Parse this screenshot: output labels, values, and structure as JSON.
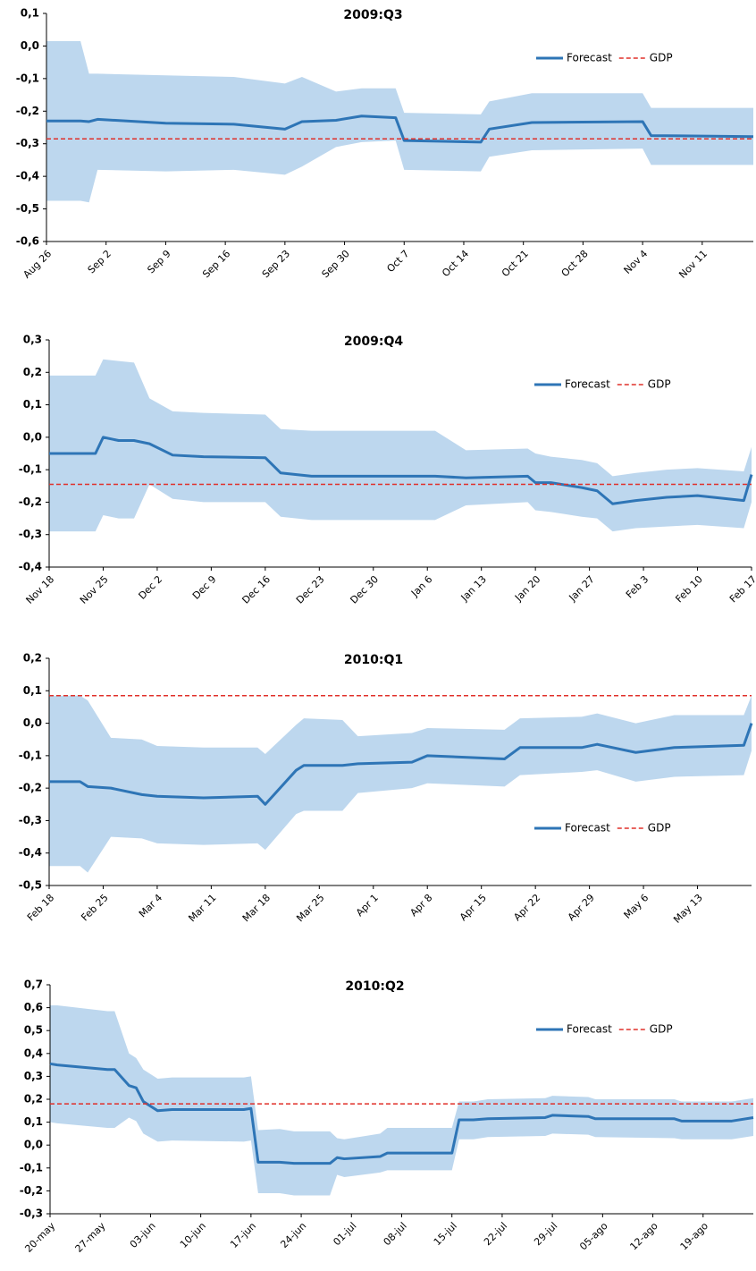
{
  "chart_data": [
    {
      "type": "line",
      "title": "2009:Q3",
      "legend": "upper right",
      "xlim": [
        "Aug 26",
        "Nov 17"
      ],
      "xticks": [
        "Aug 26",
        "Sep 2",
        "Sep 9",
        "Sep 16",
        "Sep 23",
        "Sep 30",
        "Oct 7",
        "Oct 14",
        "Oct 21",
        "Oct 28",
        "Nov 4",
        "Nov 11"
      ],
      "ylim": [
        -0.6,
        0.1
      ],
      "yticks": [
        {
          "value": 0.1,
          "label": "0,1"
        },
        {
          "value": 0,
          "label": "0,0"
        },
        {
          "value": -0.1,
          "label": "-0,1"
        },
        {
          "value": -0.2,
          "label": "-0,2"
        },
        {
          "value": -0.3,
          "label": "-0,3"
        },
        {
          "value": -0.4,
          "label": "-0,4"
        },
        {
          "value": -0.5,
          "label": "-0,5"
        },
        {
          "value": -0.6,
          "label": "-0,6"
        }
      ],
      "x": [
        "Aug 26",
        "Aug 30",
        "Aug 31",
        "Sep 1",
        "Sep 9",
        "Sep 17",
        "Sep 23",
        "Sep 25",
        "Sep 29",
        "Oct 2",
        "Oct 6",
        "Oct 7",
        "Oct 16",
        "Oct 17",
        "Oct 22",
        "Nov 4",
        "Nov 5",
        "Nov 17"
      ],
      "band": {
        "color": "#bdd7ee",
        "upper": [
          0.015,
          0.015,
          -0.085,
          -0.085,
          -0.09,
          -0.095,
          -0.115,
          -0.095,
          -0.14,
          -0.13,
          -0.13,
          -0.205,
          -0.21,
          -0.17,
          -0.145,
          -0.145,
          -0.19,
          -0.19
        ],
        "lower": [
          -0.475,
          -0.475,
          -0.48,
          -0.38,
          -0.385,
          -0.38,
          -0.395,
          -0.37,
          -0.31,
          -0.295,
          -0.29,
          -0.38,
          -0.385,
          -0.34,
          -0.32,
          -0.315,
          -0.365,
          -0.365
        ]
      },
      "series": [
        {
          "name": "Forecast",
          "color": "#2e75b6",
          "values": [
            -0.23,
            -0.23,
            -0.232,
            -0.225,
            -0.237,
            -0.24,
            -0.255,
            -0.232,
            -0.228,
            -0.215,
            -0.22,
            -0.29,
            -0.295,
            -0.255,
            -0.235,
            -0.232,
            -0.275,
            -0.278
          ]
        },
        {
          "name": "GDP",
          "color": "#e0302a",
          "dashed": true,
          "value": -0.285
        }
      ]
    },
    {
      "type": "line",
      "title": "2009:Q4",
      "legend": "upper right",
      "xlim": [
        "Nov 18",
        "Feb 17"
      ],
      "xticks": [
        "Nov 18",
        "Nov 25",
        "Dec 2",
        "Dec 9",
        "Dec 16",
        "Dec 23",
        "Dec 30",
        "Jan 6",
        "Jan 13",
        "Jan 20",
        "Jan 27",
        "Feb 3",
        "Feb 10",
        "Feb 17"
      ],
      "ylim": [
        -0.4,
        0.3
      ],
      "yticks": [
        {
          "value": 0.3,
          "label": "0,3"
        },
        {
          "value": 0.2,
          "label": "0,2"
        },
        {
          "value": 0.1,
          "label": "0,1"
        },
        {
          "value": 0,
          "label": "0,0"
        },
        {
          "value": -0.1,
          "label": "-0,1"
        },
        {
          "value": -0.2,
          "label": "-0,2"
        },
        {
          "value": -0.3,
          "label": "-0,3"
        },
        {
          "value": -0.4,
          "label": "-0,4"
        }
      ],
      "x": [
        "Nov 18",
        "Nov 24",
        "Nov 25",
        "Nov 27",
        "Nov 29",
        "Dec 1",
        "Dec 4",
        "Dec 8",
        "Dec 16",
        "Dec 18",
        "Dec 22",
        "Jan 7",
        "Jan 11",
        "Jan 19",
        "Jan 20",
        "Jan 22",
        "Jan 26",
        "Jan 28",
        "Jan 30",
        "Feb 2",
        "Feb 6",
        "Feb 10",
        "Feb 16",
        "Feb 17"
      ],
      "band": {
        "color": "#bdd7ee",
        "upper": [
          0.19,
          0.19,
          0.24,
          0.235,
          0.23,
          0.12,
          0.08,
          0.075,
          0.07,
          0.025,
          0.02,
          0.02,
          -0.04,
          -0.035,
          -0.05,
          -0.06,
          -0.07,
          -0.08,
          -0.12,
          -0.11,
          -0.1,
          -0.095,
          -0.105,
          -0.03
        ],
        "lower": [
          -0.29,
          -0.29,
          -0.24,
          -0.25,
          -0.25,
          -0.145,
          -0.19,
          -0.2,
          -0.2,
          -0.245,
          -0.255,
          -0.255,
          -0.21,
          -0.2,
          -0.225,
          -0.23,
          -0.245,
          -0.25,
          -0.29,
          -0.28,
          -0.275,
          -0.27,
          -0.28,
          -0.2
        ]
      },
      "series": [
        {
          "name": "Forecast",
          "color": "#2e75b6",
          "values": [
            -0.05,
            -0.05,
            0.0,
            -0.01,
            -0.01,
            -0.02,
            -0.055,
            -0.06,
            -0.063,
            -0.11,
            -0.12,
            -0.12,
            -0.125,
            -0.12,
            -0.14,
            -0.14,
            -0.155,
            -0.165,
            -0.205,
            -0.195,
            -0.185,
            -0.18,
            -0.195,
            -0.115
          ]
        },
        {
          "name": "GDP",
          "color": "#e0302a",
          "dashed": true,
          "value": -0.145
        }
      ]
    },
    {
      "type": "line",
      "title": "2010:Q1",
      "legend": "lower right",
      "xlim": [
        "Feb 18",
        "May 20"
      ],
      "xticks": [
        "Feb 18",
        "Feb 25",
        "Mar 4",
        "Mar 11",
        "Mar 18",
        "Mar 25",
        "Apr 1",
        "Apr 8",
        "Apr 15",
        "Apr 22",
        "Apr 29",
        "May 6",
        "May 13"
      ],
      "ylim": [
        -0.5,
        0.2
      ],
      "yticks": [
        {
          "value": 0.2,
          "label": "0,2"
        },
        {
          "value": 0.1,
          "label": "0,1"
        },
        {
          "value": 0,
          "label": "0,0"
        },
        {
          "value": -0.1,
          "label": "-0,1"
        },
        {
          "value": -0.2,
          "label": "-0,2"
        },
        {
          "value": -0.3,
          "label": "-0,3"
        },
        {
          "value": -0.4,
          "label": "-0,4"
        },
        {
          "value": -0.5,
          "label": "-0,5"
        }
      ],
      "x": [
        "Feb 18",
        "Feb 22",
        "Feb 23",
        "Feb 26",
        "Mar 2",
        "Mar 4",
        "Mar 10",
        "Mar 17",
        "Mar 18",
        "Mar 22",
        "Mar 23",
        "Mar 28",
        "Mar 30",
        "Apr 6",
        "Apr 8",
        "Apr 18",
        "Apr 20",
        "Apr 28",
        "Apr 30",
        "May 5",
        "May 10",
        "May 19",
        "May 20"
      ],
      "band": {
        "color": "#bdd7ee",
        "upper": [
          0.085,
          0.085,
          0.07,
          -0.045,
          -0.05,
          -0.07,
          -0.075,
          -0.075,
          -0.095,
          -0.005,
          0.015,
          0.01,
          -0.04,
          -0.03,
          -0.015,
          -0.02,
          0.015,
          0.02,
          0.03,
          0.0,
          0.025,
          0.025,
          0.085
        ],
        "lower": [
          -0.44,
          -0.44,
          -0.46,
          -0.35,
          -0.355,
          -0.37,
          -0.375,
          -0.37,
          -0.39,
          -0.28,
          -0.27,
          -0.27,
          -0.215,
          -0.2,
          -0.185,
          -0.195,
          -0.16,
          -0.15,
          -0.145,
          -0.18,
          -0.165,
          -0.16,
          -0.085
        ]
      },
      "series": [
        {
          "name": "Forecast",
          "color": "#2e75b6",
          "values": [
            -0.18,
            -0.18,
            -0.195,
            -0.2,
            -0.22,
            -0.225,
            -0.23,
            -0.225,
            -0.25,
            -0.145,
            -0.13,
            -0.13,
            -0.125,
            -0.12,
            -0.1,
            -0.11,
            -0.075,
            -0.075,
            -0.065,
            -0.09,
            -0.075,
            -0.068,
            0.0
          ]
        },
        {
          "name": "GDP",
          "color": "#e0302a",
          "dashed": true,
          "value": 0.085
        }
      ]
    },
    {
      "type": "line",
      "title": "2010:Q2",
      "legend": "upper right",
      "xlim": [
        "20-may",
        "26-ago"
      ],
      "xticks": [
        "20-may",
        "27-may",
        "03-jun",
        "10-jun",
        "17-jun",
        "24-jun",
        "01-jul",
        "08-jul",
        "15-jul",
        "22-jul",
        "29-jul",
        "05-ago",
        "12-ago",
        "19-ago"
      ],
      "ylim": [
        -0.3,
        0.7
      ],
      "yticks": [
        {
          "value": 0.7,
          "label": "0,7"
        },
        {
          "value": 0.6,
          "label": "0,6"
        },
        {
          "value": 0.5,
          "label": "0,5"
        },
        {
          "value": 0.4,
          "label": "0,4"
        },
        {
          "value": 0.3,
          "label": "0,3"
        },
        {
          "value": 0.2,
          "label": "0,2"
        },
        {
          "value": 0.1,
          "label": "0,1"
        },
        {
          "value": 0,
          "label": "0,0"
        },
        {
          "value": -0.1,
          "label": "-0,1"
        },
        {
          "value": -0.2,
          "label": "-0,2"
        },
        {
          "value": -0.3,
          "label": "-0,3"
        }
      ],
      "x": [
        "20-may",
        "21-may",
        "28-may",
        "29-may",
        "31-may",
        "01-jun",
        "02-jun",
        "04-jun",
        "06-jun",
        "16-jun",
        "17-jun",
        "18-jun",
        "21-jun",
        "23-jun",
        "28-jun",
        "29-jun",
        "30-jun",
        "05-jul",
        "06-jul",
        "15-jul",
        "16-jul",
        "18-jul",
        "20-jul",
        "28-jul",
        "29-jul",
        "03-ago",
        "04-ago",
        "15-ago",
        "16-ago",
        "23-ago",
        "26-ago"
      ],
      "band": {
        "color": "#bdd7ee",
        "upper": [
          0.61,
          0.61,
          0.585,
          0.585,
          0.4,
          0.38,
          0.33,
          0.29,
          0.295,
          0.295,
          0.3,
          0.065,
          0.07,
          0.06,
          0.06,
          0.03,
          0.025,
          0.05,
          0.075,
          0.075,
          0.19,
          0.19,
          0.2,
          0.205,
          0.215,
          0.21,
          0.2,
          0.2,
          0.19,
          0.19,
          0.205
        ],
        "lower": [
          0.1,
          0.095,
          0.075,
          0.075,
          0.12,
          0.105,
          0.05,
          0.015,
          0.02,
          0.015,
          0.02,
          -0.21,
          -0.21,
          -0.22,
          -0.22,
          -0.13,
          -0.14,
          -0.12,
          -0.11,
          -0.11,
          0.025,
          0.025,
          0.035,
          0.04,
          0.05,
          0.045,
          0.035,
          0.03,
          0.025,
          0.025,
          0.04
        ]
      },
      "series": [
        {
          "name": "Forecast",
          "color": "#2e75b6",
          "values": [
            0.355,
            0.35,
            0.33,
            0.33,
            0.26,
            0.25,
            0.19,
            0.15,
            0.155,
            0.155,
            0.16,
            -0.075,
            -0.075,
            -0.08,
            -0.08,
            -0.055,
            -0.06,
            -0.05,
            -0.035,
            -0.035,
            0.11,
            0.11,
            0.115,
            0.12,
            0.13,
            0.125,
            0.115,
            0.115,
            0.105,
            0.105,
            0.12
          ]
        },
        {
          "name": "GDP",
          "color": "#e0302a",
          "dashed": true,
          "value": 0.18
        }
      ]
    }
  ]
}
